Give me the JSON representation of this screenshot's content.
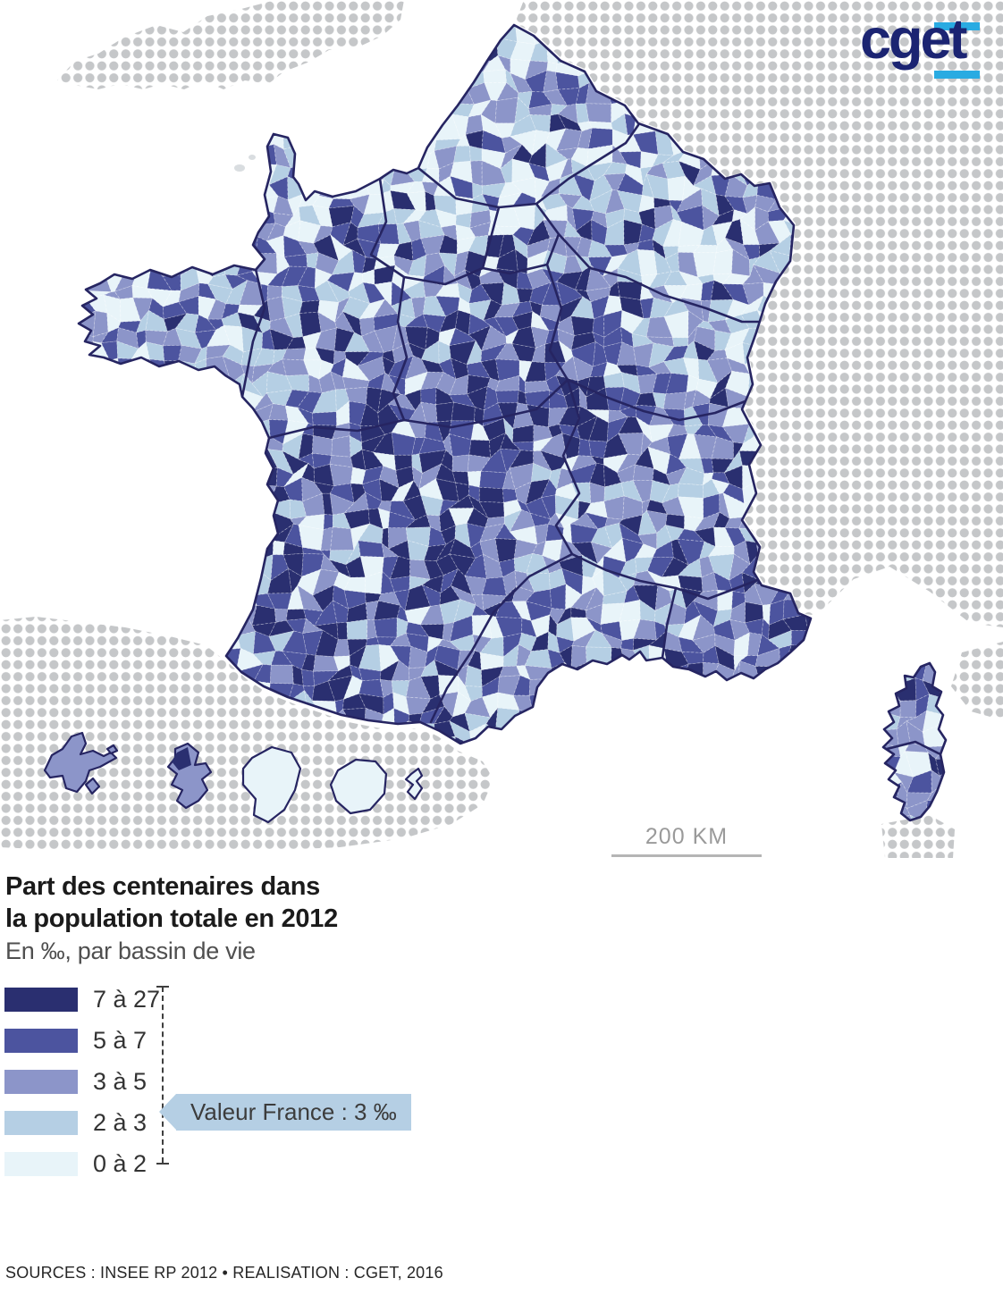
{
  "logo": {
    "text": "cget",
    "text_color": "#1b2472",
    "accent_color": "#29abe2"
  },
  "map": {
    "scale_label": "200 KM",
    "dots_color": "#c5c7c9",
    "outline_color": "#262562",
    "region_border_color": "#262562",
    "cell_border_color": "#ffffff",
    "sea_color": "#ffffff"
  },
  "title": {
    "line1": "Part des centenaires dans",
    "line2": "la population totale en 2012",
    "subtitle": "En ‰, par bassin de vie"
  },
  "legend": {
    "items": [
      {
        "label": "7 à 27",
        "color": "#2a2f70"
      },
      {
        "label": "5 à 7",
        "color": "#4c549f"
      },
      {
        "label": "3 à 5",
        "color": "#8c95c9"
      },
      {
        "label": "2 à 3",
        "color": "#b5cfe4"
      },
      {
        "label": "0 à 2",
        "color": "#e8f4f9"
      }
    ],
    "callout": "Valeur France : 3 ‰"
  },
  "footer": {
    "sources": "SOURCES : INSEE RP 2012 • REALISATION : CGET, 2016"
  }
}
